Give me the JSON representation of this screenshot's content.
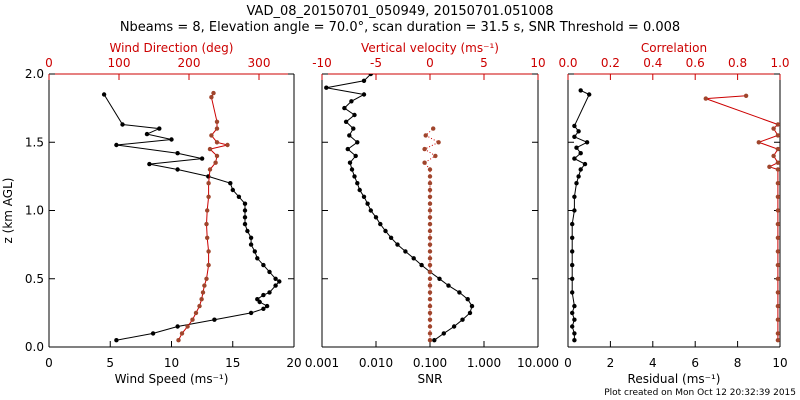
{
  "header": {
    "title_line1": "VAD_08_20150701_050949, 20150701.051008",
    "title_line2": "Nbeams = 8, Elevation angle = 70.0°, scan duration = 31.5 s, SNR Threshold = 0.008"
  },
  "footer": {
    "text": "Plot created on Mon Oct 12 20:32:39 2015"
  },
  "colors": {
    "black": "#000000",
    "red": "#cc0000",
    "marker_red": "#a0452c"
  },
  "chart_data": [
    {
      "type": "line",
      "ylabel": "z (km AGL)",
      "ylim": [
        0,
        2.0
      ],
      "yticks": [
        "0.0",
        "0.5",
        "1.0",
        "1.5",
        "2.0"
      ],
      "bottom_axis": {
        "label": "Wind Speed (ms⁻¹)",
        "range": [
          0,
          20
        ],
        "ticks": [
          "0",
          "5",
          "10",
          "15",
          "20"
        ]
      },
      "top_axis": {
        "label": "Wind Direction (deg)",
        "range": [
          0,
          350
        ],
        "ticks": [
          "0",
          "100",
          "200",
          "300"
        ]
      },
      "series": [
        {
          "axis": "bottom",
          "z": [
            0.05,
            0.1,
            0.15,
            0.2,
            0.25,
            0.28,
            0.3,
            0.33,
            0.35,
            0.38,
            0.4,
            0.45,
            0.48,
            0.5,
            0.55,
            0.6,
            0.65,
            0.7,
            0.75,
            0.8,
            0.85,
            0.9,
            0.95,
            1.0,
            1.05,
            1.1,
            1.15,
            1.2,
            1.25,
            1.3,
            1.34,
            1.38,
            1.42,
            1.48,
            1.52,
            1.56,
            1.6,
            1.63,
            1.85
          ],
          "values": [
            5.5,
            8.5,
            10.5,
            13.5,
            16.5,
            17.5,
            17.8,
            17.2,
            17.0,
            17.5,
            18.0,
            18.5,
            18.8,
            18.5,
            18.0,
            17.5,
            17.0,
            16.8,
            16.5,
            16.5,
            16.2,
            16.0,
            16.0,
            16.0,
            16.0,
            15.5,
            15.0,
            14.8,
            13.0,
            10.5,
            8.2,
            12.5,
            10.5,
            5.5,
            10.0,
            8.0,
            9.0,
            6.0,
            4.5
          ]
        },
        {
          "axis": "top",
          "z": [
            0.05,
            0.1,
            0.15,
            0.2,
            0.25,
            0.3,
            0.35,
            0.4,
            0.45,
            0.5,
            0.6,
            0.7,
            0.8,
            0.9,
            1.0,
            1.1,
            1.2,
            1.3,
            1.35,
            1.4,
            1.45,
            1.48,
            1.5,
            1.55,
            1.6,
            1.65,
            1.83,
            1.86
          ],
          "values": [
            185,
            190,
            198,
            205,
            210,
            215,
            218,
            220,
            222,
            225,
            228,
            228,
            226,
            225,
            226,
            228,
            228,
            230,
            238,
            240,
            230,
            255,
            240,
            232,
            240,
            240,
            232,
            235
          ]
        }
      ]
    },
    {
      "type": "scatter",
      "bottom_axis": {
        "label": "SNR",
        "scale": "log",
        "range": [
          0.001,
          10
        ],
        "ticks": [
          "0.001",
          "0.010",
          "0.100",
          "1.000",
          "10.000"
        ]
      },
      "top_axis": {
        "label": "Vertical velocity (ms⁻¹)",
        "range": [
          -10,
          10
        ],
        "ticks": [
          "-10",
          "-5",
          "0",
          "5",
          "10"
        ]
      },
      "series": [
        {
          "axis": "bottom",
          "z": [
            0.05,
            0.1,
            0.15,
            0.2,
            0.25,
            0.3,
            0.35,
            0.4,
            0.45,
            0.5,
            0.55,
            0.6,
            0.65,
            0.7,
            0.75,
            0.8,
            0.85,
            0.9,
            0.95,
            1.0,
            1.05,
            1.1,
            1.15,
            1.2,
            1.25,
            1.3,
            1.35,
            1.4,
            1.45,
            1.5,
            1.55,
            1.6,
            1.65,
            1.7,
            1.75,
            1.8,
            1.85,
            1.9,
            1.95,
            2.0
          ],
          "values": [
            0.12,
            0.18,
            0.28,
            0.4,
            0.55,
            0.6,
            0.5,
            0.35,
            0.22,
            0.15,
            0.1,
            0.07,
            0.05,
            0.035,
            0.025,
            0.019,
            0.015,
            0.012,
            0.01,
            0.008,
            0.007,
            0.006,
            0.005,
            0.0045,
            0.004,
            0.0036,
            0.0033,
            0.0042,
            0.003,
            0.0045,
            0.0032,
            0.0038,
            0.0028,
            0.004,
            0.0026,
            0.0035,
            0.006,
            0.0012,
            0.006,
            0.008
          ]
        },
        {
          "axis": "top",
          "z": [
            0.05,
            0.1,
            0.15,
            0.2,
            0.25,
            0.3,
            0.35,
            0.4,
            0.45,
            0.5,
            0.55,
            0.6,
            0.65,
            0.7,
            0.75,
            0.8,
            0.85,
            0.9,
            0.95,
            1.0,
            1.05,
            1.1,
            1.15,
            1.2,
            1.25,
            1.3,
            1.35,
            1.4,
            1.45,
            1.5,
            1.55,
            1.6
          ],
          "values": [
            0,
            0,
            0,
            0,
            0,
            0,
            0,
            0,
            0,
            0,
            0,
            0,
            0,
            0,
            0,
            0,
            0,
            0,
            0,
            0,
            0,
            0,
            0,
            0,
            0,
            0,
            -0.5,
            0.5,
            -0.5,
            0.8,
            -0.4,
            0.3
          ]
        }
      ]
    },
    {
      "type": "line",
      "bottom_axis": {
        "label": "Residual (ms⁻¹)",
        "range": [
          0,
          10
        ],
        "ticks": [
          "0",
          "2",
          "4",
          "6",
          "8",
          "10"
        ]
      },
      "top_axis": {
        "label": "Correlation",
        "range": [
          0,
          1
        ],
        "ticks": [
          "0.0",
          "0.2",
          "0.4",
          "0.6",
          "0.8",
          "1.0"
        ]
      },
      "series": [
        {
          "axis": "bottom",
          "z": [
            0.05,
            0.1,
            0.15,
            0.2,
            0.25,
            0.3,
            0.4,
            0.5,
            0.6,
            0.7,
            0.8,
            0.9,
            1.0,
            1.1,
            1.2,
            1.25,
            1.3,
            1.34,
            1.38,
            1.42,
            1.46,
            1.5,
            1.54,
            1.58,
            1.62,
            1.85,
            1.88
          ],
          "values": [
            0.3,
            0.3,
            0.2,
            0.3,
            0.2,
            0.3,
            0.2,
            0.2,
            0.2,
            0.2,
            0.2,
            0.2,
            0.3,
            0.3,
            0.4,
            0.5,
            0.6,
            0.8,
            0.3,
            0.6,
            0.4,
            0.9,
            0.3,
            0.5,
            0.3,
            1.0,
            0.6
          ]
        },
        {
          "axis": "top",
          "z": [
            0.05,
            0.1,
            0.2,
            0.3,
            0.4,
            0.5,
            0.6,
            0.7,
            0.8,
            0.9,
            1.0,
            1.1,
            1.2,
            1.3,
            1.32,
            1.35,
            1.4,
            1.45,
            1.5,
            1.55,
            1.6,
            1.63,
            1.82,
            1.84
          ],
          "values": [
            0.99,
            0.99,
            0.99,
            0.99,
            0.99,
            0.99,
            0.99,
            0.99,
            0.99,
            0.99,
            0.99,
            0.99,
            0.99,
            0.99,
            0.95,
            0.99,
            0.97,
            0.99,
            0.9,
            0.99,
            0.97,
            0.99,
            0.65,
            0.84
          ]
        }
      ]
    }
  ]
}
